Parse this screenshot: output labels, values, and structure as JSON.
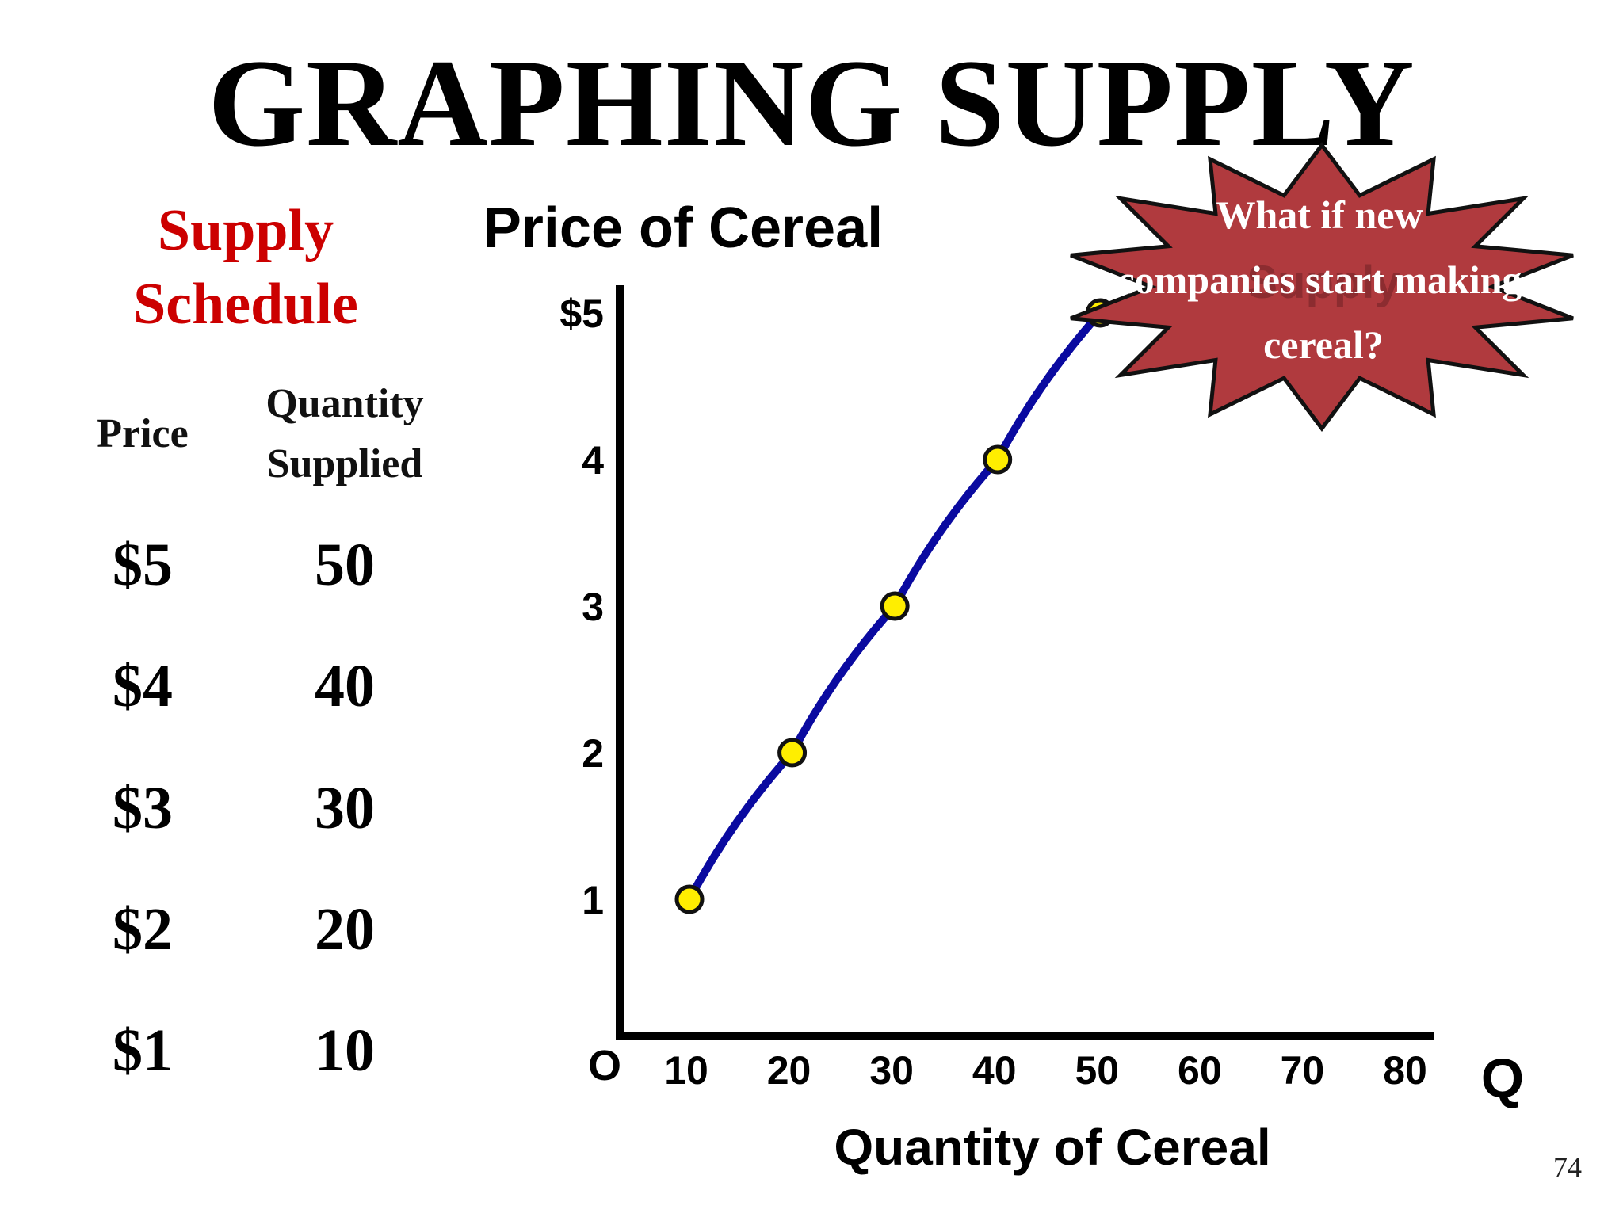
{
  "slide": {
    "title": "GRAPHING SUPPLY",
    "page_number": "74"
  },
  "schedule": {
    "heading": [
      "Supply",
      "Schedule"
    ],
    "col_price": "Price",
    "col_qty": [
      "Quantity",
      "Supplied"
    ],
    "rows": [
      {
        "price": "$5",
        "qty": "50"
      },
      {
        "price": "$4",
        "qty": "40"
      },
      {
        "price": "$3",
        "qty": "30"
      },
      {
        "price": "$2",
        "qty": "20"
      },
      {
        "price": "$1",
        "qty": "10"
      }
    ]
  },
  "chart_data": {
    "type": "line",
    "title": "Price of Cereal",
    "xlabel": "Quantity of Cereal",
    "x_axis_letter": "Q",
    "origin_label": "O",
    "x_ticks": [
      "10",
      "20",
      "30",
      "40",
      "50",
      "60",
      "70",
      "80"
    ],
    "y_ticks": [
      "1",
      "2",
      "3",
      "4",
      "$5"
    ],
    "xlim": [
      0,
      80
    ],
    "ylim": [
      0,
      5
    ],
    "series": [
      {
        "x": [
          10,
          20,
          30,
          40,
          50
        ],
        "y": [
          1,
          2,
          3,
          4,
          5
        ],
        "color": "#0a0aa0",
        "marker_color": "#ffee00"
      }
    ],
    "callout": {
      "lines": [
        "What if new",
        "companies start making",
        "cereal?"
      ],
      "fill": "#b03a3e",
      "ghost_label": "Supply"
    }
  }
}
